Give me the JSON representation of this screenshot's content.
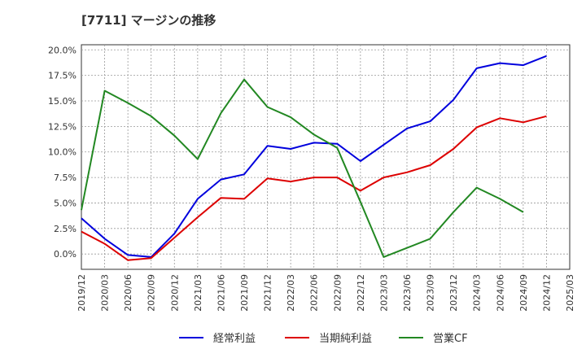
{
  "chart_data": {
    "type": "line",
    "title": "[7711]  マージンの推移",
    "xlabel": "",
    "ylabel": "",
    "ylim": [
      -1.5,
      20.5
    ],
    "yticks": [
      0.0,
      2.5,
      5.0,
      7.5,
      10.0,
      12.5,
      15.0,
      17.5,
      20.0
    ],
    "ytick_labels": [
      "0.0%",
      "2.5%",
      "5.0%",
      "7.5%",
      "10.0%",
      "12.5%",
      "15.0%",
      "17.5%",
      "20.0%"
    ],
    "x": [
      "2019/12",
      "2020/03",
      "2020/06",
      "2020/09",
      "2020/12",
      "2021/03",
      "2021/06",
      "2021/09",
      "2021/12",
      "2022/03",
      "2022/06",
      "2022/09",
      "2022/12",
      "2023/03",
      "2023/06",
      "2023/09",
      "2023/12",
      "2024/03",
      "2024/06",
      "2024/09",
      "2024/12",
      "2025/03"
    ],
    "grid": true,
    "legend_position": "bottom",
    "series": [
      {
        "name": "経常利益",
        "color": "#0000dd",
        "values": [
          3.5,
          1.5,
          -0.1,
          -0.3,
          2.0,
          5.4,
          7.3,
          7.8,
          10.6,
          10.3,
          10.9,
          10.8,
          9.1,
          10.7,
          12.3,
          13.0,
          15.1,
          18.2,
          18.7,
          18.5,
          19.4,
          null
        ]
      },
      {
        "name": "当期純利益",
        "color": "#dd0000",
        "values": [
          2.2,
          1.0,
          -0.6,
          -0.4,
          1.6,
          3.6,
          5.5,
          5.4,
          7.4,
          7.1,
          7.5,
          7.5,
          6.2,
          7.5,
          8.0,
          8.7,
          10.3,
          12.4,
          13.3,
          12.9,
          13.5,
          null
        ]
      },
      {
        "name": "営業CF",
        "color": "#228822",
        "values": [
          4.3,
          16.0,
          14.8,
          13.5,
          11.6,
          9.3,
          13.8,
          17.1,
          14.4,
          13.4,
          11.7,
          10.4,
          5.1,
          -0.3,
          0.6,
          1.5,
          4.1,
          6.5,
          5.4,
          4.1,
          null,
          null
        ]
      }
    ]
  }
}
